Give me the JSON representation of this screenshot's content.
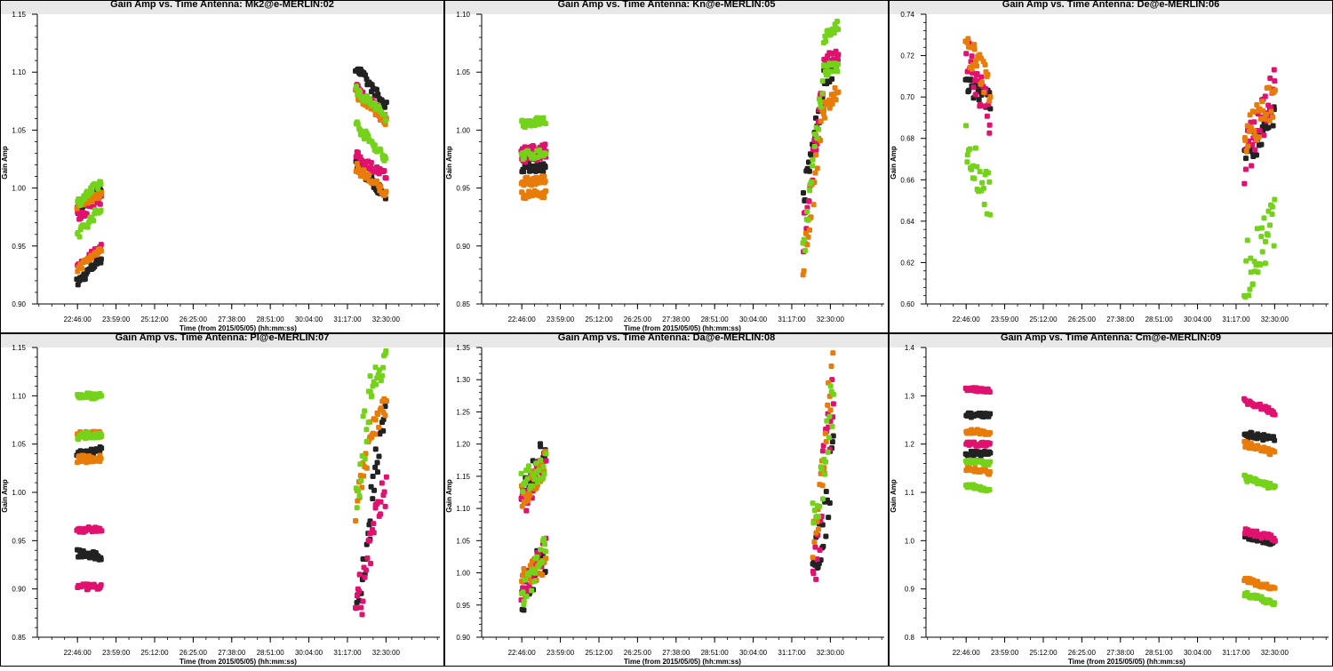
{
  "colors": {
    "black": "#222222",
    "pink": "#e0116f",
    "orange": "#e87c0a",
    "green": "#74d21a",
    "panel_bg": "#ffffff",
    "page_bg": "#e8e8e8"
  },
  "chart_data": [
    {
      "type": "scatter",
      "title": "Gain Amp vs. Time Antenna: Mk2@e-MERLIN:02",
      "xlabel": "Time (from 2015/05/05) (hh:mm:ss)",
      "ylabel": "Gain Amp",
      "xlim": [
        21.5,
        34.2
      ],
      "ylim": [
        0.9,
        1.15
      ],
      "xticks": [
        22.7667,
        23.9833,
        25.2,
        26.4167,
        27.6333,
        28.85,
        30.0667,
        31.2833,
        32.5
      ],
      "xtick_labels": [
        "22:46:00",
        "23:59:00",
        "25:12:00",
        "26:25:00",
        "27:38:00",
        "28:51:00",
        "30:04:00",
        "31:17:00",
        "32:30:00"
      ],
      "yticks": [
        0.9,
        0.95,
        1.0,
        1.05,
        1.1,
        1.15
      ],
      "ytick_labels": [
        "0.90",
        "0.95",
        "1.00",
        "1.05",
        "1.10",
        "1.15"
      ],
      "series": [
        {
          "color": "black",
          "segments": [
            [
              22.76,
              23.52,
              0.918,
              0.94,
              0.004
            ],
            [
              22.76,
              23.52,
              0.98,
              1.0,
              0.004
            ],
            [
              31.55,
              32.5,
              1.105,
              1.07,
              0.004
            ],
            [
              31.55,
              32.5,
              1.02,
              0.993,
              0.004
            ]
          ]
        },
        {
          "color": "pink",
          "segments": [
            [
              22.76,
              23.52,
              0.975,
              0.99,
              0.004
            ],
            [
              22.76,
              23.52,
              0.932,
              0.95,
              0.003
            ],
            [
              31.55,
              32.5,
              1.088,
              1.06,
              0.004
            ],
            [
              31.55,
              32.5,
              1.028,
              1.01,
              0.004
            ]
          ]
        },
        {
          "color": "orange",
          "segments": [
            [
              22.76,
              23.52,
              0.93,
              0.948,
              0.003
            ],
            [
              22.76,
              23.52,
              0.985,
              0.995,
              0.003
            ],
            [
              31.55,
              32.5,
              1.018,
              0.995,
              0.004
            ],
            [
              31.55,
              32.5,
              1.082,
              1.058,
              0.004
            ]
          ]
        },
        {
          "color": "green",
          "segments": [
            [
              22.76,
              23.52,
              0.987,
              1.005,
              0.004
            ],
            [
              22.76,
              23.52,
              0.96,
              0.983,
              0.004
            ],
            [
              31.55,
              32.5,
              1.085,
              1.062,
              0.004
            ],
            [
              31.55,
              32.5,
              1.055,
              1.025,
              0.004
            ]
          ]
        }
      ]
    },
    {
      "type": "scatter",
      "title": "Gain Amp vs. Time Antenna: Kn@e-MERLIN:05",
      "xlabel": "Time (from 2015/05/05) (hh:mm:ss)",
      "ylabel": "Gain Amp",
      "xlim": [
        21.5,
        34.2
      ],
      "ylim": [
        0.85,
        1.1
      ],
      "xticks": [
        22.7667,
        23.9833,
        25.2,
        26.4167,
        27.6333,
        28.85,
        30.0667,
        31.2833,
        32.5
      ],
      "xtick_labels": [
        "22:46:00",
        "23:59:00",
        "25:12:00",
        "26:25:00",
        "27:38:00",
        "28:51:00",
        "30:04:00",
        "31:17:00",
        "32:30:00"
      ],
      "yticks": [
        0.85,
        0.9,
        0.95,
        1.0,
        1.05,
        1.1
      ],
      "ytick_labels": [
        "0.85",
        "0.90",
        "0.95",
        "1.00",
        "1.05",
        "1.10"
      ],
      "series": [
        {
          "color": "black",
          "segments": [
            [
              22.76,
              23.52,
              0.968,
              0.968,
              0.004
            ],
            [
              31.65,
              32.3,
              0.94,
              1.04,
              0.012
            ],
            [
              32.3,
              32.75,
              1.04,
              1.06,
              0.008
            ]
          ]
        },
        {
          "color": "pink",
          "segments": [
            [
              22.76,
              23.52,
              0.982,
              0.984,
              0.004
            ],
            [
              22.76,
              23.52,
              0.975,
              0.977,
              0.003
            ],
            [
              31.65,
              32.3,
              0.91,
              1.04,
              0.015
            ],
            [
              32.3,
              32.75,
              1.06,
              1.068,
              0.006
            ]
          ]
        },
        {
          "color": "orange",
          "segments": [
            [
              22.76,
              23.52,
              0.955,
              0.957,
              0.004
            ],
            [
              22.76,
              23.52,
              0.944,
              0.945,
              0.003
            ],
            [
              31.65,
              32.3,
              0.88,
              1.02,
              0.014
            ],
            [
              32.3,
              32.75,
              1.015,
              1.035,
              0.006
            ]
          ]
        },
        {
          "color": "green",
          "segments": [
            [
              22.76,
              23.52,
              1.006,
              1.008,
              0.004
            ],
            [
              22.76,
              23.52,
              0.978,
              0.98,
              0.004
            ],
            [
              31.65,
              32.3,
              0.895,
              1.05,
              0.014
            ],
            [
              32.3,
              32.75,
              1.08,
              1.09,
              0.005
            ],
            [
              32.3,
              32.75,
              1.05,
              1.055,
              0.006
            ]
          ]
        }
      ]
    },
    {
      "type": "scatter",
      "title": "Gain Amp vs. Time Antenna: De@e-MERLIN:06",
      "xlabel": "",
      "ylabel": "Gain Amp",
      "xlim": [
        21.5,
        34.2
      ],
      "ylim": [
        0.6,
        0.74
      ],
      "xticks": [
        22.7667,
        23.9833,
        25.2,
        26.4167,
        27.6333,
        28.85,
        30.0667,
        31.2833,
        32.5
      ],
      "xtick_labels": [
        "22:46:00",
        "23:59:00",
        "25:12:00",
        "26:25:00",
        "27:38:00",
        "28:51:00",
        "30:04:00",
        "31:17:00",
        "32:30:00"
      ],
      "yticks": [
        0.6,
        0.62,
        0.64,
        0.66,
        0.68,
        0.7,
        0.72,
        0.74
      ],
      "ytick_labels": [
        "0.60",
        "0.62",
        "0.64",
        "0.66",
        "0.68",
        "0.70",
        "0.72",
        "0.74"
      ],
      "series": [
        {
          "color": "black",
          "segments": [
            [
              22.76,
              23.52,
              0.706,
              0.698,
              0.005
            ],
            [
              31.55,
              32.5,
              0.672,
              0.69,
              0.007
            ]
          ]
        },
        {
          "color": "pink",
          "segments": [
            [
              22.76,
              23.52,
              0.722,
              0.69,
              0.01
            ],
            [
              31.55,
              32.5,
              0.67,
              0.705,
              0.012
            ]
          ]
        },
        {
          "color": "orange",
          "segments": [
            [
              22.76,
              23.52,
              0.725,
              0.705,
              0.008
            ],
            [
              31.55,
              32.5,
              0.68,
              0.7,
              0.01
            ]
          ]
        },
        {
          "color": "green",
          "segments": [
            [
              22.76,
              23.52,
              0.68,
              0.65,
              0.012
            ],
            [
              31.55,
              32.5,
              0.615,
              0.64,
              0.015
            ]
          ]
        }
      ]
    },
    {
      "type": "scatter",
      "title": "Gain Amp vs. Time Antenna: Pl@e-MERLIN:07",
      "xlabel": "Time (from 2015/05/05) (hh:mm:ss)",
      "ylabel": "Gain Amp",
      "xlim": [
        21.5,
        34.2
      ],
      "ylim": [
        0.85,
        1.15
      ],
      "xticks": [
        22.7667,
        23.9833,
        25.2,
        26.4167,
        27.6333,
        28.85,
        30.0667,
        31.2833,
        32.5
      ],
      "xtick_labels": [
        "22:46:00",
        "23:59:00",
        "25:12:00",
        "26:25:00",
        "27:38:00",
        "28:51:00",
        "30:04:00",
        "31:17:00",
        "32:30:00"
      ],
      "yticks": [
        0.85,
        0.9,
        0.95,
        1.0,
        1.05,
        1.1,
        1.15
      ],
      "ytick_labels": [
        "0.85",
        "0.90",
        "0.95",
        "1.00",
        "1.05",
        "1.10",
        "1.15"
      ],
      "series": [
        {
          "color": "black",
          "segments": [
            [
              22.76,
              23.52,
              0.937,
              0.933,
              0.004
            ],
            [
              22.76,
              23.52,
              1.04,
              1.045,
              0.003
            ],
            [
              31.55,
              32.0,
              0.88,
              0.96,
              0.02
            ],
            [
              32.0,
              32.5,
              0.98,
              1.1,
              0.02
            ]
          ]
        },
        {
          "color": "pink",
          "segments": [
            [
              22.76,
              23.52,
              0.96,
              0.962,
              0.003
            ],
            [
              22.76,
              23.52,
              0.902,
              0.902,
              0.003
            ],
            [
              31.55,
              32.0,
              0.86,
              0.95,
              0.03
            ],
            [
              32.0,
              32.5,
              0.95,
              1.005,
              0.02
            ]
          ]
        },
        {
          "color": "orange",
          "segments": [
            [
              22.76,
              23.52,
              1.035,
              1.035,
              0.004
            ],
            [
              22.76,
              23.52,
              1.06,
              1.06,
              0.003
            ],
            [
              31.55,
              32.0,
              0.98,
              1.06,
              0.02
            ],
            [
              32.0,
              32.5,
              1.06,
              1.095,
              0.015
            ]
          ]
        },
        {
          "color": "green",
          "segments": [
            [
              22.76,
              23.52,
              1.1,
              1.1,
              0.003
            ],
            [
              22.76,
              23.52,
              1.058,
              1.06,
              0.003
            ],
            [
              31.55,
              32.0,
              1.0,
              1.1,
              0.03
            ],
            [
              32.0,
              32.5,
              1.11,
              1.14,
              0.015
            ]
          ]
        }
      ]
    },
    {
      "type": "scatter",
      "title": "Gain Amp vs. Time Antenna: Da@e-MERLIN:08",
      "xlabel": "Time (from 2015/05/05) (hh:mm:ss)",
      "ylabel": "Gain Amp",
      "xlim": [
        21.5,
        34.2
      ],
      "ylim": [
        0.9,
        1.35
      ],
      "xticks": [
        22.7667,
        23.9833,
        25.2,
        26.4167,
        27.6333,
        28.85,
        30.0667,
        31.2833,
        32.5
      ],
      "xtick_labels": [
        "22:46:00",
        "23:59:00",
        "25:12:00",
        "26:25:00",
        "27:38:00",
        "28:51:00",
        "30:04:00",
        "31:17:00",
        "32:30:00"
      ],
      "yticks": [
        0.9,
        0.95,
        1.0,
        1.05,
        1.1,
        1.15,
        1.2,
        1.25,
        1.3,
        1.35
      ],
      "ytick_labels": [
        "0.90",
        "0.95",
        "1.00",
        "1.05",
        "1.10",
        "1.15",
        "1.20",
        "1.25",
        "1.30",
        "1.35"
      ],
      "series": [
        {
          "color": "black",
          "segments": [
            [
              22.76,
              23.52,
              1.12,
              1.2,
              0.02
            ],
            [
              22.76,
              23.52,
              0.96,
              1.03,
              0.03
            ],
            [
              31.95,
              32.6,
              0.98,
              1.18,
              0.05
            ]
          ]
        },
        {
          "color": "pink",
          "segments": [
            [
              22.76,
              23.52,
              1.1,
              1.18,
              0.02
            ],
            [
              22.76,
              23.52,
              0.97,
              1.04,
              0.02
            ],
            [
              31.95,
              32.6,
              0.98,
              1.3,
              0.06
            ]
          ]
        },
        {
          "color": "orange",
          "segments": [
            [
              22.76,
              23.52,
              1.12,
              1.17,
              0.02
            ],
            [
              22.76,
              23.52,
              0.99,
              1.02,
              0.02
            ],
            [
              31.95,
              32.6,
              1.01,
              1.33,
              0.06
            ]
          ]
        },
        {
          "color": "green",
          "segments": [
            [
              22.76,
              23.52,
              1.14,
              1.17,
              0.02
            ],
            [
              22.76,
              23.52,
              0.96,
              1.04,
              0.02
            ],
            [
              31.95,
              32.6,
              1.06,
              1.28,
              0.05
            ]
          ]
        }
      ]
    },
    {
      "type": "scatter",
      "title": "Gain Amp vs. Time Antenna: Cm@e-MERLIN:09",
      "xlabel": "Time (from 2015/05/05) (hh:mm:ss)",
      "ylabel": "Gain Amp",
      "xlim": [
        21.5,
        34.2
      ],
      "ylim": [
        0.8,
        1.4
      ],
      "xticks": [
        22.7667,
        23.9833,
        25.2,
        26.4167,
        27.6333,
        28.85,
        30.0667,
        31.2833,
        32.5
      ],
      "xtick_labels": [
        "22:46:00",
        "23:59:00",
        "25:12:00",
        "26:25:00",
        "27:38:00",
        "28:51:00",
        "30:04:00",
        "31:17:00",
        "32:30:00"
      ],
      "yticks": [
        0.8,
        0.9,
        1.0,
        1.1,
        1.2,
        1.3,
        1.4
      ],
      "ytick_labels": [
        "0.8",
        "0.9",
        "1.0",
        "1.1",
        "1.2",
        "1.3",
        "1.4"
      ],
      "series": [
        {
          "color": "black",
          "segments": [
            [
              22.76,
              23.52,
              1.26,
              1.26,
              0.005
            ],
            [
              22.76,
              23.52,
              1.18,
              1.18,
              0.005
            ],
            [
              31.55,
              32.5,
              1.22,
              1.21,
              0.006
            ],
            [
              31.55,
              32.5,
              1.01,
              0.995,
              0.005
            ]
          ]
        },
        {
          "color": "pink",
          "segments": [
            [
              22.76,
              23.52,
              1.315,
              1.31,
              0.004
            ],
            [
              22.76,
              23.52,
              1.2,
              1.2,
              0.004
            ],
            [
              31.55,
              32.5,
              1.29,
              1.265,
              0.006
            ],
            [
              31.55,
              32.5,
              1.02,
              1.005,
              0.006
            ]
          ]
        },
        {
          "color": "orange",
          "segments": [
            [
              22.76,
              23.52,
              1.225,
              1.225,
              0.005
            ],
            [
              22.76,
              23.52,
              1.15,
              1.14,
              0.005
            ],
            [
              31.55,
              32.5,
              1.2,
              1.18,
              0.006
            ],
            [
              31.55,
              32.5,
              0.92,
              0.9,
              0.005
            ]
          ]
        },
        {
          "color": "green",
          "segments": [
            [
              22.76,
              23.52,
              1.115,
              1.105,
              0.004
            ],
            [
              22.76,
              23.52,
              1.165,
              1.16,
              0.004
            ],
            [
              31.55,
              32.5,
              1.13,
              1.11,
              0.006
            ],
            [
              31.55,
              32.5,
              0.89,
              0.87,
              0.005
            ]
          ]
        }
      ]
    }
  ]
}
